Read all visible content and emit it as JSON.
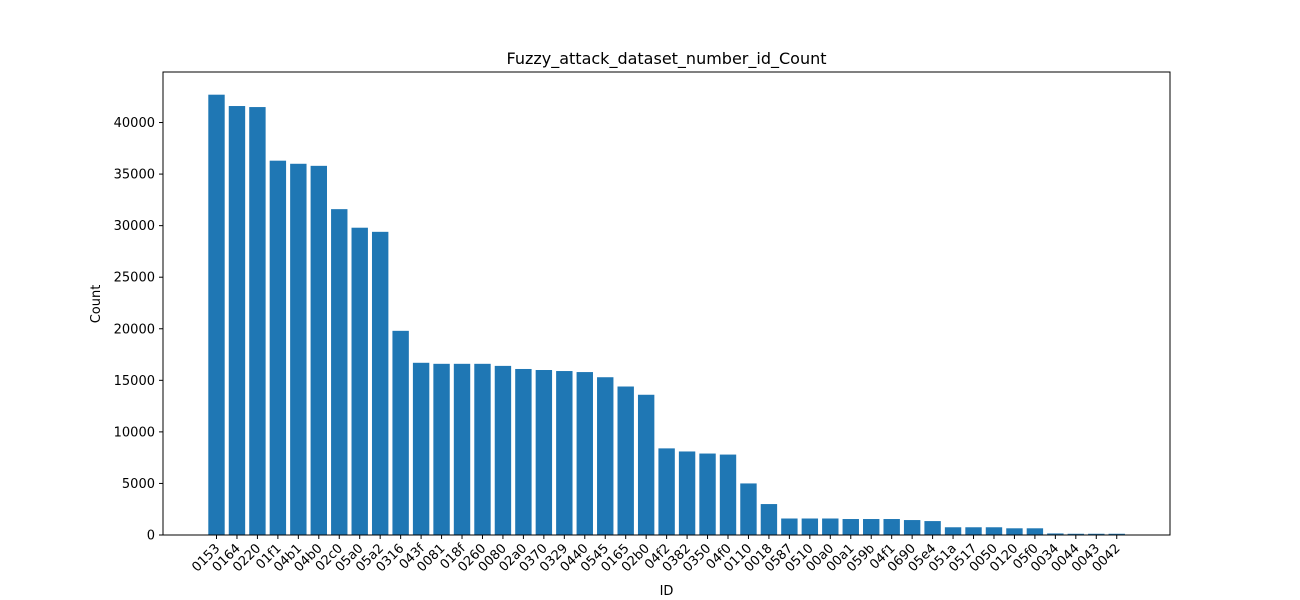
{
  "chart_data": {
    "type": "bar",
    "title": "Fuzzy_attack_dataset_number_id_Count",
    "xlabel": "ID",
    "ylabel": "Count",
    "ylim": [
      0,
      44900
    ],
    "yticks": [
      0,
      5000,
      10000,
      15000,
      20000,
      25000,
      30000,
      35000,
      40000
    ],
    "ytick_labels": [
      "0",
      "5000",
      "10000",
      "15000",
      "20000",
      "25000",
      "30000",
      "35000",
      "40000"
    ],
    "bar_color": "#1f77b4",
    "grid": false,
    "categories": [
      "0153",
      "0164",
      "0220",
      "01f1",
      "04b1",
      "04b0",
      "02c0",
      "05a0",
      "05a2",
      "0316",
      "043f",
      "0081",
      "018f",
      "0260",
      "0080",
      "02a0",
      "0370",
      "0329",
      "0440",
      "0545",
      "0165",
      "02b0",
      "04f2",
      "0382",
      "0350",
      "04f0",
      "0110",
      "0018",
      "0587",
      "0510",
      "00a0",
      "00a1",
      "059b",
      "04f1",
      "0690",
      "05e4",
      "051a",
      "0517",
      "0050",
      "0120",
      "05f0",
      "0034",
      "0044",
      "0043",
      "0042"
    ],
    "values": [
      42700,
      41600,
      41500,
      36300,
      36000,
      35800,
      31600,
      29800,
      29400,
      19800,
      16700,
      16600,
      16600,
      16600,
      16400,
      16100,
      16000,
      15900,
      15800,
      15300,
      14400,
      13600,
      8400,
      8100,
      7900,
      7800,
      5000,
      3000,
      1600,
      1600,
      1600,
      1550,
      1550,
      1550,
      1450,
      1350,
      750,
      750,
      750,
      650,
      650,
      150,
      120,
      120,
      120
    ]
  }
}
